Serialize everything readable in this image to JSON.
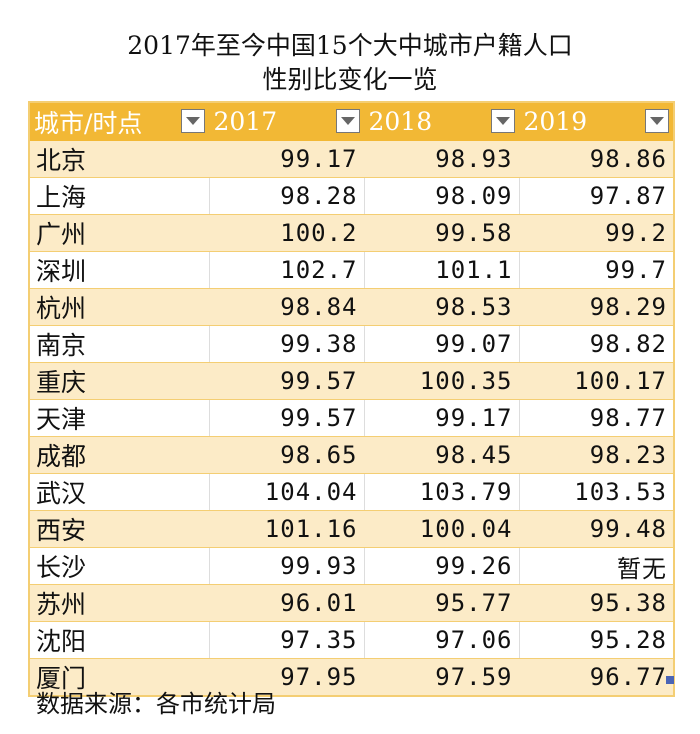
{
  "title_line1": "2017年至今中国15个大中城市户籍人口",
  "title_line2": "性别比变化一览",
  "headers": [
    "城市/时点",
    "2017",
    "2018",
    "2019"
  ],
  "rows": [
    [
      "北京",
      "99.17",
      "98.93",
      "98.86"
    ],
    [
      "上海",
      "98.28",
      "98.09",
      "97.87"
    ],
    [
      "广州",
      "100.2",
      "99.58",
      "99.2"
    ],
    [
      "深圳",
      "102.7",
      "101.1",
      "99.7"
    ],
    [
      "杭州",
      "98.84",
      "98.53",
      "98.29"
    ],
    [
      "南京",
      "99.38",
      "99.07",
      "98.82"
    ],
    [
      "重庆",
      "99.57",
      "100.35",
      "100.17"
    ],
    [
      "天津",
      "99.57",
      "99.17",
      "98.77"
    ],
    [
      "成都",
      "98.65",
      "98.45",
      "98.23"
    ],
    [
      "武汉",
      "104.04",
      "103.79",
      "103.53"
    ],
    [
      "西安",
      "101.16",
      "100.04",
      "99.48"
    ],
    [
      "长沙",
      "99.93",
      "99.26",
      "暂无"
    ],
    [
      "苏州",
      "96.01",
      "95.77",
      "95.38"
    ],
    [
      "沈阳",
      "97.35",
      "97.06",
      "95.28"
    ],
    [
      "厦门",
      "97.95",
      "97.59",
      "96.77"
    ]
  ],
  "footnote": "数据来源：各市统计局",
  "colors": {
    "header": "#F2B835",
    "band": "#FCEBC7",
    "border": "#F4CE73"
  }
}
